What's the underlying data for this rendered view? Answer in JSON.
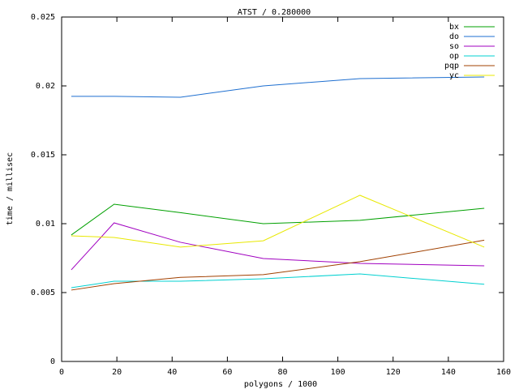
{
  "chart_data": {
    "type": "line",
    "title": "ATST / 0.280000",
    "x_label": "polygons / 1000",
    "y_label": "time / millisec",
    "x": [
      3.5,
      19,
      43,
      73,
      108,
      153
    ],
    "series": [
      {
        "name": "bx",
        "color": "#00a000",
        "values": [
          0.00918,
          0.01141,
          0.0108,
          0.01,
          0.01024,
          0.01112
        ]
      },
      {
        "name": "do",
        "color": "#1e6fd0",
        "values": [
          0.01924,
          0.01924,
          0.01918,
          0.02,
          0.02053,
          0.02065
        ]
      },
      {
        "name": "so",
        "color": "#a000c0",
        "values": [
          0.00665,
          0.01006,
          0.00865,
          0.00747,
          0.00712,
          0.00694
        ]
      },
      {
        "name": "op",
        "color": "#00d0d0",
        "values": [
          0.00535,
          0.00582,
          0.00582,
          0.006,
          0.00635,
          0.0056
        ]
      },
      {
        "name": "pqp",
        "color": "#a04000",
        "values": [
          0.00518,
          0.00565,
          0.0061,
          0.0063,
          0.00724,
          0.0088
        ]
      },
      {
        "name": "yc",
        "color": "#e8e800",
        "values": [
          0.00912,
          0.009,
          0.0083,
          0.00876,
          0.01206,
          0.0083
        ]
      }
    ],
    "xlim": [
      0,
      160
    ],
    "xticks": [
      0,
      20,
      40,
      60,
      80,
      100,
      120,
      140,
      160
    ],
    "ylim": [
      0,
      0.025
    ],
    "yticks": [
      0,
      0.005,
      0.01,
      0.015,
      0.02,
      0.025
    ],
    "grid": false,
    "legend": "top-right"
  }
}
